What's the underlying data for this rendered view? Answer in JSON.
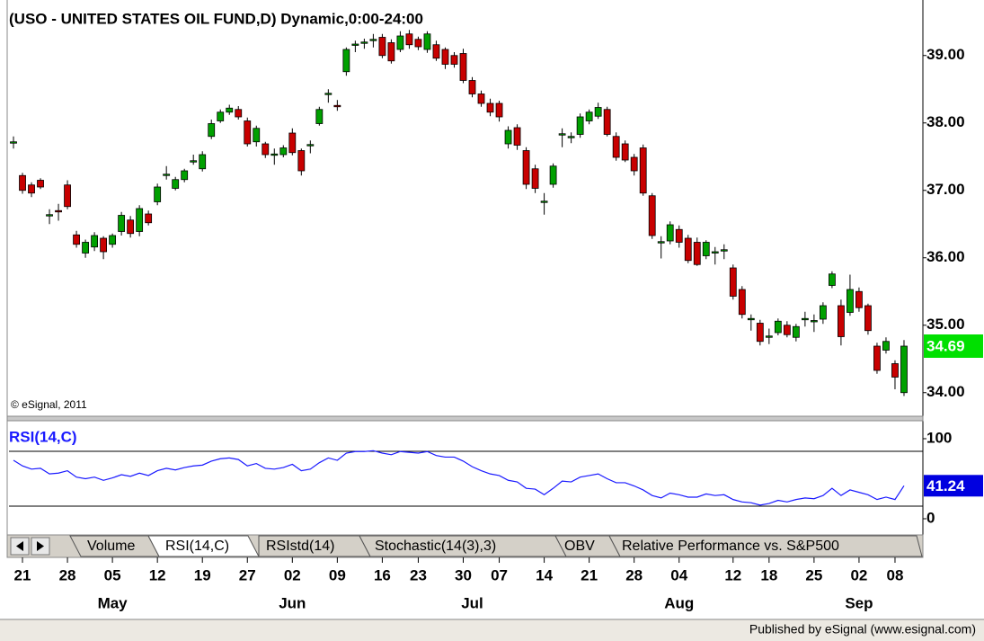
{
  "header": {
    "title": "(USO - UNITED STATES OIL FUND,D) Dynamic,0:00-24:00",
    "copyright": "© eSignal, 2011"
  },
  "tabs": [
    "Volume",
    "RSI(14,C)",
    "RSIstd(14)",
    "Stochastic(14(3),3)",
    "OBV",
    "Relative Performance vs. S&P500"
  ],
  "footer": "Published by eSignal (www.esignal.com)",
  "chart_data": [
    {
      "type": "candlestick",
      "open": [
        37.7,
        37.22,
        37.08,
        37.15,
        36.62,
        36.7,
        37.08,
        36.34,
        36.07,
        36.16,
        36.29,
        36.2,
        36.39,
        36.56,
        36.39,
        36.65,
        36.83,
        37.22,
        37.03,
        37.16,
        37.42,
        37.32,
        37.8,
        38.03,
        38.16,
        38.2,
        38.03,
        37.72,
        37.69,
        37.52,
        37.53,
        37.85,
        37.59,
        37.66,
        37.99,
        38.42,
        38.26,
        38.76,
        39.15,
        39.18,
        39.22,
        39.27,
        39.19,
        39.09,
        39.32,
        39.24,
        39.09,
        39.16,
        39.09,
        39.0,
        39.03,
        38.63,
        38.43,
        38.29,
        38.29,
        37.69,
        37.93,
        37.59,
        37.32,
        36.82,
        37.09,
        37.82,
        37.78,
        37.83,
        38.03,
        38.1,
        38.2,
        37.8,
        37.69,
        37.49,
        37.63,
        36.92,
        36.22,
        36.25,
        36.42,
        36.29,
        36.23,
        36.03,
        36.07,
        36.1,
        35.85,
        35.53,
        35.08,
        35.03,
        34.82,
        34.89,
        35.0,
        34.82,
        35.08,
        35.05,
        35.09,
        35.59,
        35.29,
        35.19,
        35.5,
        35.29,
        34.69,
        34.63,
        34.43,
        34.0
      ],
      "high": [
        37.8,
        37.26,
        37.12,
        37.18,
        36.72,
        36.8,
        37.15,
        36.4,
        36.27,
        36.38,
        36.32,
        36.36,
        36.68,
        36.62,
        36.78,
        36.7,
        37.1,
        37.36,
        37.2,
        37.32,
        37.53,
        37.58,
        38.05,
        38.2,
        38.27,
        38.25,
        38.08,
        37.96,
        37.72,
        37.62,
        37.67,
        37.92,
        37.62,
        37.74,
        38.24,
        38.5,
        38.34,
        39.12,
        39.22,
        39.25,
        39.32,
        39.32,
        39.24,
        39.36,
        39.38,
        39.28,
        39.36,
        39.22,
        39.12,
        39.05,
        39.1,
        38.68,
        38.48,
        38.36,
        38.33,
        37.95,
        37.98,
        37.64,
        37.38,
        36.96,
        37.4,
        37.92,
        37.86,
        38.14,
        38.2,
        38.3,
        38.24,
        37.86,
        37.74,
        37.54,
        37.68,
        36.96,
        36.32,
        36.54,
        36.48,
        36.34,
        36.3,
        36.26,
        36.16,
        36.2,
        35.9,
        35.58,
        35.16,
        35.08,
        34.95,
        35.1,
        35.06,
        35.02,
        35.2,
        35.16,
        35.34,
        35.8,
        35.38,
        35.75,
        35.56,
        35.32,
        34.74,
        34.82,
        34.48,
        34.78
      ],
      "low": [
        37.62,
        36.95,
        36.9,
        37.02,
        36.5,
        36.55,
        36.72,
        36.15,
        36.0,
        36.1,
        35.98,
        36.15,
        36.33,
        36.3,
        36.32,
        36.48,
        36.78,
        37.16,
        37.0,
        37.12,
        37.38,
        37.28,
        37.76,
        38.0,
        38.12,
        38.05,
        37.65,
        37.65,
        37.48,
        37.38,
        37.49,
        37.52,
        37.22,
        37.55,
        37.96,
        38.3,
        38.18,
        38.7,
        39.05,
        39.1,
        39.12,
        38.96,
        38.88,
        39.05,
        39.1,
        39.08,
        39.04,
        38.92,
        38.8,
        38.82,
        38.59,
        38.38,
        38.24,
        38.1,
        38.02,
        37.62,
        37.6,
        37.02,
        36.96,
        36.64,
        37.04,
        37.64,
        37.7,
        37.78,
        37.98,
        38.06,
        37.8,
        37.44,
        37.42,
        37.22,
        36.92,
        36.28,
        35.99,
        36.2,
        36.15,
        35.92,
        35.88,
        35.98,
        35.9,
        35.98,
        35.38,
        35.1,
        34.92,
        34.7,
        34.72,
        34.85,
        34.82,
        34.76,
        34.98,
        34.9,
        35.02,
        35.55,
        34.7,
        35.14,
        35.2,
        34.86,
        34.28,
        34.58,
        34.05,
        33.95
      ],
      "close": [
        37.72,
        37.0,
        36.96,
        37.05,
        36.64,
        36.68,
        36.76,
        36.2,
        36.23,
        36.33,
        36.09,
        36.33,
        36.63,
        36.36,
        36.73,
        36.52,
        37.05,
        37.24,
        37.16,
        37.29,
        37.44,
        37.53,
        37.99,
        38.16,
        38.22,
        38.09,
        37.69,
        37.92,
        37.53,
        37.54,
        37.63,
        37.56,
        37.29,
        37.68,
        38.2,
        38.44,
        38.24,
        39.09,
        39.17,
        39.2,
        39.24,
        39.0,
        38.92,
        39.29,
        39.16,
        39.13,
        39.32,
        38.96,
        38.87,
        38.87,
        38.63,
        38.43,
        38.29,
        38.16,
        38.09,
        37.89,
        37.67,
        37.09,
        37.03,
        36.84,
        37.36,
        37.84,
        37.8,
        38.09,
        38.16,
        38.23,
        37.83,
        37.49,
        37.45,
        37.29,
        36.96,
        36.33,
        36.24,
        36.49,
        36.23,
        35.96,
        35.9,
        36.23,
        36.09,
        36.12,
        35.43,
        35.16,
        35.1,
        34.76,
        34.84,
        35.06,
        34.86,
        34.98,
        35.1,
        35.07,
        35.29,
        35.76,
        34.83,
        35.53,
        35.26,
        34.92,
        34.33,
        34.76,
        34.23,
        34.69
      ],
      "up_color": "#00a000",
      "down_color": "#c80000",
      "ylim": [
        33.65,
        39.69
      ],
      "yticks": [
        {
          "value": 34,
          "label": "34.00"
        },
        {
          "value": 35,
          "label": "35.00"
        },
        {
          "value": 36,
          "label": "36.00"
        },
        {
          "value": 37,
          "label": "37.00"
        },
        {
          "value": 38,
          "label": "38.00"
        },
        {
          "value": 39,
          "label": "39.00"
        }
      ],
      "last_color": "#00e000",
      "xlim": [
        -0.5,
        101.1
      ],
      "xticks": [
        {
          "value": 1,
          "label": "21"
        },
        {
          "value": 6,
          "label": "28"
        },
        {
          "value": 11,
          "label": "05"
        },
        {
          "value": 16,
          "label": "12"
        },
        {
          "value": 21,
          "label": "19"
        },
        {
          "value": 26,
          "label": "27"
        },
        {
          "value": 31,
          "label": "02"
        },
        {
          "value": 36,
          "label": "09"
        },
        {
          "value": 41,
          "label": "16"
        },
        {
          "value": 45,
          "label": "23"
        },
        {
          "value": 50,
          "label": "30"
        },
        {
          "value": 54,
          "label": "07"
        },
        {
          "value": 59,
          "label": "14"
        },
        {
          "value": 64,
          "label": "21"
        },
        {
          "value": 69,
          "label": "28"
        },
        {
          "value": 74,
          "label": "04"
        },
        {
          "value": 80,
          "label": "12"
        },
        {
          "value": 84,
          "label": "18"
        },
        {
          "value": 89,
          "label": "25"
        },
        {
          "value": 94,
          "label": "02"
        },
        {
          "value": 98,
          "label": "08"
        }
      ],
      "month_ticks": [
        {
          "value": 11,
          "label": "May"
        },
        {
          "value": 31,
          "label": "Jun"
        },
        {
          "value": 51,
          "label": "Jul"
        },
        {
          "value": 74,
          "label": "Aug"
        },
        {
          "value": 94,
          "label": "Sep"
        }
      ]
    },
    {
      "type": "line",
      "title": "RSI(14,C)",
      "color": "#1a1aff",
      "last_color": "#0000e0",
      "values": [
        73,
        66,
        62,
        63,
        56,
        57,
        60,
        52,
        50,
        52,
        48,
        51,
        55,
        53,
        57,
        54,
        60,
        63,
        61,
        64,
        66,
        67,
        72,
        75,
        76,
        74,
        66,
        69,
        63,
        62,
        64,
        68,
        60,
        62,
        70,
        76,
        73,
        82,
        84,
        84,
        85,
        82,
        80,
        84,
        83,
        82,
        84,
        79,
        77,
        77,
        72,
        65,
        60,
        56,
        54,
        48,
        46,
        38,
        37,
        30,
        38,
        47,
        46,
        52,
        54,
        56,
        50,
        45,
        45,
        41,
        36,
        29,
        26,
        32,
        30,
        27,
        27,
        31,
        29,
        30,
        24,
        21,
        20,
        17,
        19,
        23,
        21,
        24,
        26,
        25,
        29,
        38,
        29,
        36,
        33,
        30,
        24,
        27,
        24,
        41.24
      ],
      "ylim": [
        -14.6,
        120.2
      ],
      "yticks": [
        0,
        100
      ]
    }
  ]
}
